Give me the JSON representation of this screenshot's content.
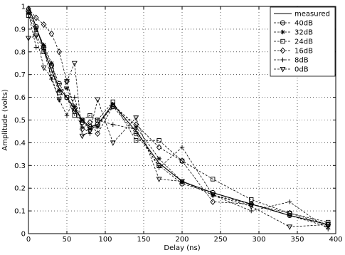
{
  "chart_data": {
    "type": "line",
    "xlabel": "Delay (ns)",
    "ylabel": "Amplitude (volts)",
    "xlim": [
      0,
      400
    ],
    "ylim": [
      0,
      1
    ],
    "xticks": [
      0,
      50,
      100,
      150,
      200,
      250,
      300,
      350,
      400
    ],
    "yticks": [
      0,
      0.1,
      0.2,
      0.3,
      0.4,
      0.5,
      0.6,
      0.7,
      0.8,
      0.9,
      1
    ],
    "xtick_labels": [
      "0",
      "50",
      "100",
      "150",
      "200",
      "250",
      "300",
      "350",
      "400"
    ],
    "ytick_labels": [
      "0",
      "0.1",
      "0.2",
      "0.3",
      "0.4",
      "0.5",
      "0.6",
      "0.7",
      "0.8",
      "0.9",
      "1"
    ],
    "grid": true,
    "legend_position": "top-right",
    "series": [
      {
        "name": "measured",
        "line": "solid",
        "marker": "none",
        "x": [
          0,
          10,
          20,
          30,
          40,
          50,
          60,
          70,
          80,
          90,
          110,
          140,
          170,
          200,
          240,
          290,
          340,
          390
        ],
        "y": [
          1.0,
          0.91,
          0.81,
          0.72,
          0.64,
          0.6,
          0.55,
          0.5,
          0.47,
          0.48,
          0.57,
          0.45,
          0.31,
          0.23,
          0.18,
          0.13,
          0.08,
          0.04
        ]
      },
      {
        "name": "40dB",
        "line": "dashed",
        "marker": "circle-minus",
        "x": [
          0,
          10,
          20,
          30,
          40,
          50,
          60,
          70,
          80,
          90,
          110,
          140,
          170,
          200,
          240,
          290,
          340,
          390
        ],
        "y": [
          0.98,
          0.91,
          0.82,
          0.74,
          0.66,
          0.6,
          0.54,
          0.49,
          0.47,
          0.48,
          0.56,
          0.44,
          0.3,
          0.22,
          0.18,
          0.13,
          0.08,
          0.04
        ]
      },
      {
        "name": "32dB",
        "line": "dashed",
        "marker": "asterisk",
        "x": [
          0,
          10,
          20,
          30,
          40,
          50,
          60,
          70,
          80,
          90,
          110,
          140,
          170,
          200,
          240,
          290,
          340,
          390
        ],
        "y": [
          0.97,
          0.9,
          0.83,
          0.75,
          0.63,
          0.64,
          0.56,
          0.5,
          0.46,
          0.47,
          0.57,
          0.47,
          0.33,
          0.23,
          0.17,
          0.13,
          0.08,
          0.03
        ]
      },
      {
        "name": "24dB",
        "line": "dashed",
        "marker": "square",
        "x": [
          0,
          10,
          20,
          30,
          40,
          50,
          60,
          70,
          80,
          90,
          110,
          140,
          170,
          200,
          240,
          290,
          340,
          390
        ],
        "y": [
          0.96,
          0.88,
          0.8,
          0.72,
          0.62,
          0.6,
          0.52,
          0.5,
          0.52,
          0.5,
          0.58,
          0.41,
          0.41,
          0.32,
          0.24,
          0.15,
          0.09,
          0.05
        ]
      },
      {
        "name": "16dB",
        "line": "dashed",
        "marker": "diamond",
        "x": [
          0,
          10,
          20,
          30,
          40,
          50,
          60,
          70,
          80,
          90,
          110,
          140,
          170,
          200,
          240,
          290,
          340,
          390
        ],
        "y": [
          0.99,
          0.95,
          0.92,
          0.88,
          0.8,
          0.67,
          0.55,
          0.46,
          0.49,
          0.44,
          0.56,
          0.48,
          0.38,
          0.32,
          0.14,
          0.13,
          0.09,
          0.04
        ]
      },
      {
        "name": "8dB",
        "line": "dashed",
        "marker": "plus",
        "x": [
          0,
          10,
          20,
          30,
          40,
          50,
          60,
          70,
          80,
          90,
          110,
          140,
          170,
          200,
          240,
          290,
          340,
          390
        ],
        "y": [
          0.97,
          0.82,
          0.81,
          0.68,
          0.59,
          0.52,
          0.6,
          0.47,
          0.44,
          0.5,
          0.48,
          0.46,
          0.29,
          0.38,
          0.17,
          0.1,
          0.14,
          0.02
        ]
      },
      {
        "name": "0dB",
        "line": "dashed",
        "marker": "triangle-down",
        "x": [
          0,
          10,
          20,
          30,
          40,
          50,
          60,
          70,
          80,
          90,
          110,
          140,
          170,
          200,
          240,
          290,
          340,
          390
        ],
        "y": [
          0.86,
          0.87,
          0.73,
          0.69,
          0.59,
          0.67,
          0.75,
          0.43,
          0.45,
          0.59,
          0.4,
          0.51,
          0.24,
          0.23,
          0.17,
          0.12,
          0.03,
          0.04
        ]
      }
    ]
  }
}
